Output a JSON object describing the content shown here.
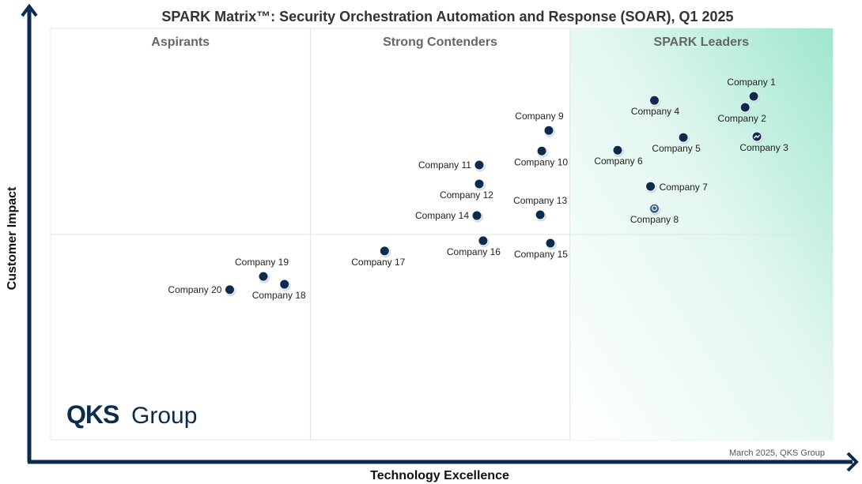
{
  "chart_data": {
    "type": "scatter",
    "title": "SPARK Matrix™: Security Orchestration Automation and Response (SOAR), Q1 2025",
    "xlabel": "Technology Excellence",
    "ylabel": "Customer Impact",
    "xlim": [
      0,
      100
    ],
    "ylim": [
      0,
      100
    ],
    "grid": false,
    "quadrants": [
      "Aspirants",
      "Strong Contenders",
      "SPARK Leaders"
    ],
    "quadrant_x_bounds": [
      33.2,
      66.4
    ],
    "quadrant_y_divider": 49.9,
    "points": [
      {
        "name": "Company 1",
        "x": 89.9,
        "y": 83.5
      },
      {
        "name": "Company 2",
        "x": 88.8,
        "y": 80.8
      },
      {
        "name": "Company 3",
        "x": 90.3,
        "y": 73.7,
        "icon": "trend-icon"
      },
      {
        "name": "Company 4",
        "x": 77.2,
        "y": 82.5
      },
      {
        "name": "Company 5",
        "x": 80.9,
        "y": 73.5
      },
      {
        "name": "Company 6",
        "x": 72.5,
        "y": 70.4
      },
      {
        "name": "Company 7",
        "x": 76.7,
        "y": 61.6
      },
      {
        "name": "Company 8",
        "x": 77.2,
        "y": 56.2,
        "icon": "lightbulb-icon"
      },
      {
        "name": "Company 9",
        "x": 63.7,
        "y": 75.2
      },
      {
        "name": "Company 10",
        "x": 62.8,
        "y": 70.2
      },
      {
        "name": "Company 11",
        "x": 54.8,
        "y": 66.8
      },
      {
        "name": "Company 12",
        "x": 54.8,
        "y": 62.2
      },
      {
        "name": "Company 13",
        "x": 62.6,
        "y": 54.7
      },
      {
        "name": "Company 14",
        "x": 54.5,
        "y": 54.5
      },
      {
        "name": "Company 15",
        "x": 63.9,
        "y": 47.8
      },
      {
        "name": "Company 16",
        "x": 55.3,
        "y": 48.4
      },
      {
        "name": "Company 17",
        "x": 42.7,
        "y": 45.9
      },
      {
        "name": "Company 18",
        "x": 29.9,
        "y": 37.8
      },
      {
        "name": "Company 19",
        "x": 27.2,
        "y": 39.7
      },
      {
        "name": "Company 20",
        "x": 22.9,
        "y": 36.5
      }
    ],
    "colors": {
      "marker": "#0d2a4f",
      "axis": "#0d2a4f",
      "leaders_gradient": "#9fe6cf"
    }
  },
  "logo": {
    "text_bold": "QKS",
    "text_light": "Group"
  },
  "credit": "March 2025, QKS Group"
}
